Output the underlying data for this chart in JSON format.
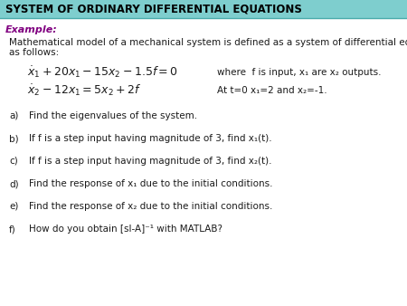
{
  "title": "SYSTEM OF ORDINARY DIFFERENTIAL EQUATIONS",
  "title_bg": "#7ecece",
  "title_color": "#000000",
  "title_fontsize": 8.5,
  "example_label": "Example:",
  "example_color": "#800080",
  "intro_line1": "Mathematical model of a mechanical system is defined as a system of differential equations",
  "intro_line2": "as follows:",
  "eq1": "$\\dot{x}_1 + 20x_1 - 15x_2 - 1.5f = 0$",
  "eq2": "$\\dot{x}_2 - 12x_1 = 5x_2 + 2f$",
  "where_line1": "where  f is input, x₁ are x₂ outputs.",
  "where_line2": "At t=0 x₁=2 and x₂=-1.",
  "items": [
    [
      "a)",
      "Find the eigenvalues of the system."
    ],
    [
      "b)",
      "If f is a step input having magnitude of 3, find x₁(t)."
    ],
    [
      "c)",
      "If f is a step input having magnitude of 3, find x₂(t)."
    ],
    [
      "d)",
      "Find the response of x₁ due to the initial conditions."
    ],
    [
      "e)",
      "Find the response of x₂ due to the initial conditions."
    ],
    [
      "f)",
      "How do you obtain [sI-A]⁻¹ with MATLAB?"
    ]
  ],
  "bg_color": "#ffffff",
  "text_color": "#1a1a1a",
  "font_size": 7.5,
  "eq_font_size": 9.0,
  "title_bar_height": 20,
  "fig_width": 4.5,
  "fig_height": 3.38,
  "dpi": 100
}
